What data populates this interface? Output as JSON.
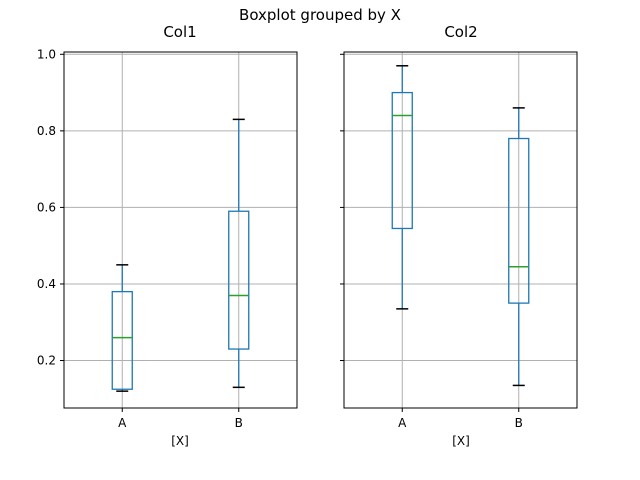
{
  "figure": {
    "title": "Boxplot grouped by X",
    "background": "#ffffff",
    "colors": {
      "box": "#1f77b4",
      "whisker": "#1f77b4",
      "median": "#2ca02c",
      "cap": "#000000",
      "grid": "#b0b0b0",
      "spine": "#000000",
      "text": "#000000"
    }
  },
  "chart_data": {
    "type": "boxplot",
    "title": "Boxplot grouped by X",
    "grid": true,
    "ylim": [
      0.076,
      1.006
    ],
    "yticks": [
      0.2,
      0.4,
      0.6,
      0.8,
      1.0
    ],
    "ytick_labels": [
      "0.2",
      "0.4",
      "0.6",
      "0.8",
      "1.0"
    ],
    "subplots": [
      {
        "title": "Col1",
        "xlabel": "[X]",
        "categories": [
          "A",
          "B"
        ],
        "boxes": [
          {
            "category": "A",
            "whislo": 0.12,
            "q1": 0.125,
            "med": 0.26,
            "q3": 0.38,
            "whishi": 0.45
          },
          {
            "category": "B",
            "whislo": 0.13,
            "q1": 0.23,
            "med": 0.37,
            "q3": 0.59,
            "whishi": 0.83
          }
        ]
      },
      {
        "title": "Col2",
        "xlabel": "[X]",
        "categories": [
          "A",
          "B"
        ],
        "boxes": [
          {
            "category": "A",
            "whislo": 0.335,
            "q1": 0.545,
            "med": 0.84,
            "q3": 0.9,
            "whishi": 0.97
          },
          {
            "category": "B",
            "whislo": 0.135,
            "q1": 0.35,
            "med": 0.445,
            "q3": 0.78,
            "whishi": 0.86
          }
        ]
      }
    ]
  }
}
